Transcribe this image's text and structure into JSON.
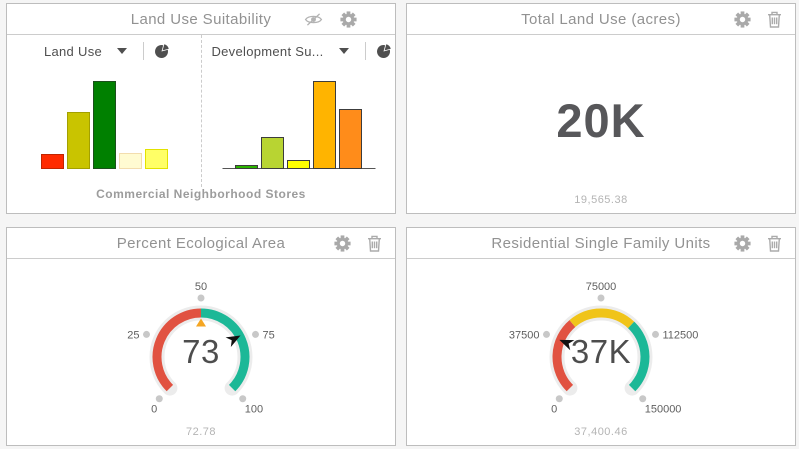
{
  "panels": {
    "suitability": {
      "title": "Land Use Suitability",
      "header_icons": [
        "eye-off",
        "gear"
      ],
      "selectors": [
        {
          "label": "Land Use",
          "icon": "pie-chart"
        },
        {
          "label": "Development Su...",
          "icon": "pie-chart"
        }
      ],
      "caption": "Commercial Neighborhood Stores"
    },
    "total": {
      "title": "Total Land Use (acres)",
      "header_icons": [
        "gear",
        "trash"
      ],
      "value": "20K",
      "detail": "19,565.38"
    },
    "eco": {
      "title": "Percent Ecological Area",
      "header_icons": [
        "gear",
        "trash"
      ],
      "detail": "72.78"
    },
    "residential": {
      "title": "Residential Single Family Units",
      "header_icons": [
        "gear",
        "trash"
      ],
      "detail": "37,400.46"
    }
  },
  "icons": {
    "eye-off": "hidden-visibility eye with slash",
    "gear": "settings gear",
    "trash": "delete trash can",
    "pie-chart": "pie chart selector",
    "caret-down": "dropdown caret"
  },
  "colors": {
    "gauge_red": "#e15241",
    "gauge_teal": "#1cb897",
    "gauge_yellow": "#f0c419",
    "threshold_orange": "#f5a623",
    "tick_dot_gray": "#c8c8c8",
    "gauge_halo": "#ececec",
    "needle_black": "#111111"
  },
  "chart_data": [
    {
      "type": "bar",
      "name": "land-use-bar-chart",
      "title": "Land Use",
      "values_pct_of_max": [
        17,
        65,
        100,
        18,
        23
      ],
      "colors": [
        "#ff2b00",
        "#c9c400",
        "#008000",
        "#fffbd2",
        "#ffff66"
      ],
      "border_colors": [
        "#c02500",
        "#a3a000",
        "#1c4f1c",
        "#f2ddae",
        "#e2e200"
      ],
      "axis_line": false
    },
    {
      "type": "bar",
      "name": "development-suitability-bar-chart",
      "title": "Development Su...",
      "values_pct_of_max": [
        5,
        36,
        10,
        100,
        68
      ],
      "colors": [
        "#2bb400",
        "#b8d432",
        "#ffff00",
        "#ffb400",
        "#ff8c1a"
      ],
      "border_colors": [
        "#3c3c3c",
        "#3c3c3c",
        "#3c3c3c",
        "#3c3c3c",
        "#3c3c3c"
      ],
      "axis_line": true
    },
    {
      "type": "gauge",
      "name": "percent-ecological-gauge",
      "title": "Percent Ecological Area",
      "value": 72.78,
      "display": "73",
      "detail": "72.78",
      "min": 0,
      "max": 100,
      "tick_labels": [
        "0",
        "25",
        "50",
        "75",
        "100"
      ],
      "segments": [
        {
          "from": 0,
          "to": 50,
          "color": "#e15241"
        },
        {
          "from": 50,
          "to": 100,
          "color": "#1cb897"
        }
      ],
      "threshold": {
        "value": 50,
        "color": "#f5a623"
      },
      "needle": true
    },
    {
      "type": "gauge",
      "name": "residential-units-gauge",
      "title": "Residential Single Family Units",
      "value": 37400.46,
      "display": "37K",
      "detail": "37,400.46",
      "min": 0,
      "max": 150000,
      "tick_labels": [
        "0",
        "37500",
        "75000",
        "112500",
        "150000"
      ],
      "segments": [
        {
          "from": 0,
          "to": 52500,
          "color": "#e15241"
        },
        {
          "from": 52500,
          "to": 99000,
          "color": "#f0c419"
        },
        {
          "from": 99000,
          "to": 150000,
          "color": "#1cb897"
        }
      ],
      "threshold": null,
      "needle": true
    }
  ]
}
